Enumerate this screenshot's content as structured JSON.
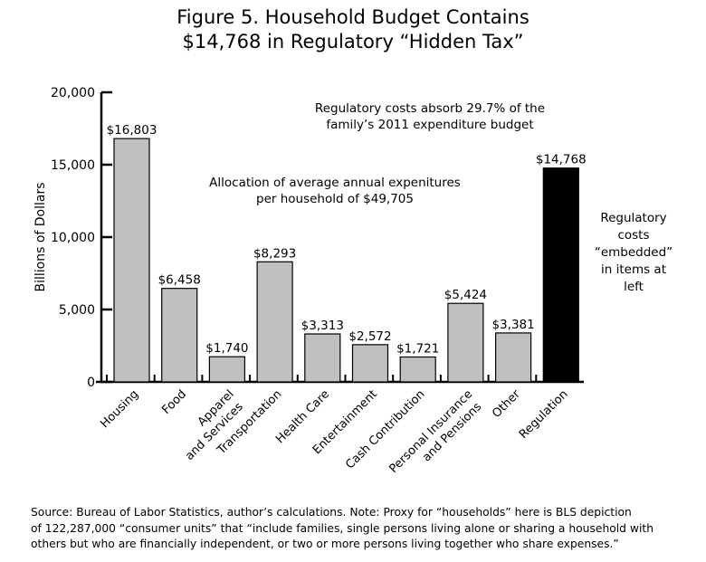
{
  "chart_data": {
    "type": "bar",
    "title": [
      "Figure 5. Household Budget Contains",
      "$14,768 in Regulatory “Hidden Tax”"
    ],
    "xlabel": "",
    "ylabel": "Billions of Dollars",
    "ylim": [
      0,
      20000
    ],
    "yticks": [
      0,
      5000,
      10000,
      15000,
      20000
    ],
    "ytick_labels": [
      "0",
      "5,000",
      "10,000",
      "15,000",
      "20,000"
    ],
    "categories": [
      [
        "Housing"
      ],
      [
        "Food"
      ],
      [
        "Apparel",
        "and Services"
      ],
      [
        "Transportation"
      ],
      [
        "Health Care"
      ],
      [
        "Entertainment"
      ],
      [
        "Cash Contribution"
      ],
      [
        "Personal Insurance",
        "and Pensions"
      ],
      [
        "Other"
      ],
      [
        "Regulation"
      ]
    ],
    "values": [
      16803,
      6458,
      1740,
      8293,
      3313,
      2572,
      1721,
      5424,
      3381,
      14768
    ],
    "value_labels": [
      "$16,803",
      "$6,458",
      "$1,740",
      "$8,293",
      "$3,313",
      "$2,572",
      "$1,721",
      "$5,424",
      "$3,381",
      "$14,768"
    ],
    "colors": [
      "#c0c0c0",
      "#c0c0c0",
      "#c0c0c0",
      "#c0c0c0",
      "#c0c0c0",
      "#c0c0c0",
      "#c0c0c0",
      "#c0c0c0",
      "#c0c0c0",
      "#000000"
    ],
    "grid": false,
    "annotations": {
      "regulatory_share": [
        "Regulatory costs absorb 29.7% of the",
        "family’s 2011 expenditure budget"
      ],
      "allocation": [
        "Allocation of average annual expenitures",
        "per household of $49,705"
      ],
      "embedded": [
        "Regulatory",
        "costs",
        "“embedded”",
        "in items at",
        "left"
      ]
    }
  },
  "source_note": [
    "Source: Bureau of Labor Statistics, author’s calculations. Note: Proxy for “households” here is BLS depiction",
    "of 122,287,000 “consumer units” that “include families, single persons living alone or sharing a household with",
    "others but who are financially independent, or two or more persons living together who share expenses.”"
  ]
}
